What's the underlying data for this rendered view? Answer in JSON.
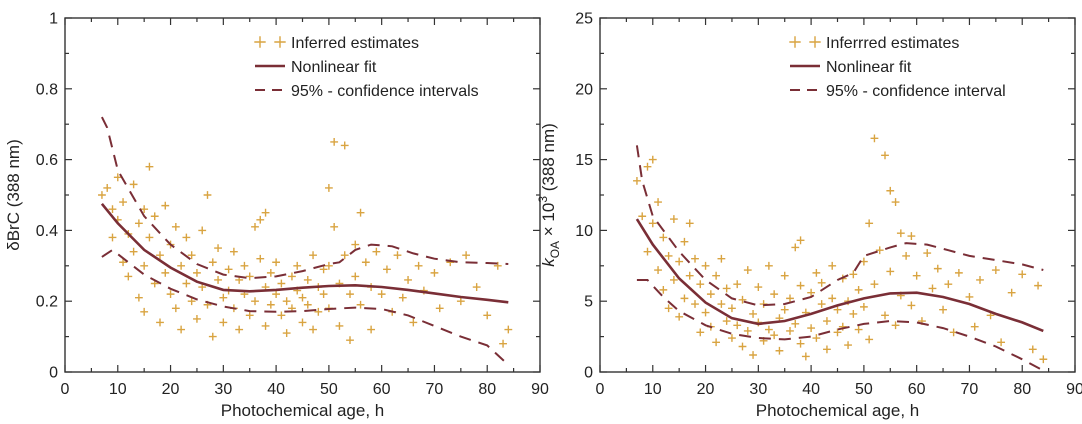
{
  "colors": {
    "points": "#d9a441",
    "fit": "#7a2e36",
    "ci": "#7a2e36",
    "axis": "#333333"
  },
  "chart_data": [
    {
      "type": "scatter",
      "title": "",
      "xlabel": "Photochemical age, h",
      "ylabel": "δBrC (388 nm)",
      "ylabel_parts": [],
      "xlim": [
        0,
        90
      ],
      "ylim": [
        0,
        1
      ],
      "xticks": [
        "0",
        "10",
        "20",
        "30",
        "40",
        "50",
        "60",
        "70",
        "80",
        "90"
      ],
      "yticks": [
        "0",
        "0.2",
        "0.4",
        "0.6",
        "0.8",
        "1"
      ],
      "grid": false,
      "legend_position": "top-right",
      "legend": {
        "points": "Inferred estimates",
        "fit": "Nonlinear fit",
        "ci": "95% - confidence intervals"
      },
      "fit_curve": [
        [
          7,
          0.475
        ],
        [
          10,
          0.42
        ],
        [
          15,
          0.345
        ],
        [
          20,
          0.295
        ],
        [
          25,
          0.255
        ],
        [
          30,
          0.232
        ],
        [
          35,
          0.228
        ],
        [
          40,
          0.232
        ],
        [
          45,
          0.238
        ],
        [
          50,
          0.243
        ],
        [
          55,
          0.245
        ],
        [
          60,
          0.24
        ],
        [
          65,
          0.232
        ],
        [
          70,
          0.222
        ],
        [
          75,
          0.212
        ],
        [
          80,
          0.204
        ],
        [
          84,
          0.197
        ]
      ],
      "ci_upper": [
        [
          7,
          0.72
        ],
        [
          8,
          0.69
        ],
        [
          10,
          0.57
        ],
        [
          15,
          0.44
        ],
        [
          20,
          0.36
        ],
        [
          25,
          0.305
        ],
        [
          30,
          0.275
        ],
        [
          35,
          0.265
        ],
        [
          40,
          0.27
        ],
        [
          45,
          0.285
        ],
        [
          50,
          0.305
        ],
        [
          52,
          0.31
        ],
        [
          55,
          0.345
        ],
        [
          58,
          0.36
        ],
        [
          62,
          0.355
        ],
        [
          66,
          0.335
        ],
        [
          70,
          0.32
        ],
        [
          75,
          0.31
        ],
        [
          80,
          0.308
        ],
        [
          84,
          0.305
        ]
      ],
      "ci_lower": [
        [
          7,
          0.325
        ],
        [
          9,
          0.345
        ],
        [
          12,
          0.31
        ],
        [
          15,
          0.275
        ],
        [
          20,
          0.235
        ],
        [
          25,
          0.205
        ],
        [
          30,
          0.185
        ],
        [
          35,
          0.172
        ],
        [
          40,
          0.17
        ],
        [
          45,
          0.172
        ],
        [
          50,
          0.178
        ],
        [
          55,
          0.182
        ],
        [
          60,
          0.178
        ],
        [
          65,
          0.16
        ],
        [
          70,
          0.13
        ],
        [
          75,
          0.1
        ],
        [
          80,
          0.075
        ],
        [
          84,
          0.02
        ]
      ],
      "points": [
        [
          7,
          0.5
        ],
        [
          8,
          0.52
        ],
        [
          9,
          0.46
        ],
        [
          9,
          0.38
        ],
        [
          10,
          0.55
        ],
        [
          10,
          0.43
        ],
        [
          11,
          0.31
        ],
        [
          11,
          0.48
        ],
        [
          12,
          0.39
        ],
        [
          12,
          0.27
        ],
        [
          13,
          0.53
        ],
        [
          13,
          0.34
        ],
        [
          14,
          0.42
        ],
        [
          14,
          0.21
        ],
        [
          15,
          0.46
        ],
        [
          15,
          0.3
        ],
        [
          15,
          0.17
        ],
        [
          16,
          0.58
        ],
        [
          16,
          0.38
        ],
        [
          17,
          0.25
        ],
        [
          17,
          0.44
        ],
        [
          18,
          0.33
        ],
        [
          18,
          0.14
        ],
        [
          19,
          0.47
        ],
        [
          19,
          0.28
        ],
        [
          20,
          0.36
        ],
        [
          20,
          0.22
        ],
        [
          21,
          0.41
        ],
        [
          21,
          0.18
        ],
        [
          22,
          0.3
        ],
        [
          22,
          0.12
        ],
        [
          23,
          0.38
        ],
        [
          23,
          0.25
        ],
        [
          24,
          0.2
        ],
        [
          24,
          0.33
        ],
        [
          25,
          0.28
        ],
        [
          25,
          0.15
        ],
        [
          26,
          0.24
        ],
        [
          26,
          0.4
        ],
        [
          27,
          0.5
        ],
        [
          27,
          0.19
        ],
        [
          28,
          0.31
        ],
        [
          28,
          0.1
        ],
        [
          29,
          0.26
        ],
        [
          29,
          0.35
        ],
        [
          30,
          0.21
        ],
        [
          30,
          0.14
        ],
        [
          31,
          0.29
        ],
        [
          31,
          0.23
        ],
        [
          32,
          0.18
        ],
        [
          32,
          0.34
        ],
        [
          33,
          0.26
        ],
        [
          33,
          0.12
        ],
        [
          34,
          0.3
        ],
        [
          34,
          0.22
        ],
        [
          35,
          0.16
        ],
        [
          35,
          0.27
        ],
        [
          36,
          0.2
        ],
        [
          36,
          0.41
        ],
        [
          37,
          0.43
        ],
        [
          37,
          0.32
        ],
        [
          38,
          0.45
        ],
        [
          38,
          0.24
        ],
        [
          38,
          0.13
        ],
        [
          39,
          0.19
        ],
        [
          39,
          0.28
        ],
        [
          40,
          0.22
        ],
        [
          40,
          0.31
        ],
        [
          41,
          0.16
        ],
        [
          41,
          0.25
        ],
        [
          42,
          0.2
        ],
        [
          42,
          0.11
        ],
        [
          43,
          0.27
        ],
        [
          43,
          0.18
        ],
        [
          44,
          0.23
        ],
        [
          44,
          0.3
        ],
        [
          45,
          0.14
        ],
        [
          45,
          0.21
        ],
        [
          46,
          0.26
        ],
        [
          46,
          0.19
        ],
        [
          47,
          0.33
        ],
        [
          47,
          0.12
        ],
        [
          48,
          0.24
        ],
        [
          48,
          0.17
        ],
        [
          49,
          0.29
        ],
        [
          49,
          0.22
        ],
        [
          50,
          0.52
        ],
        [
          50,
          0.3
        ],
        [
          50,
          0.18
        ],
        [
          51,
          0.65
        ],
        [
          51,
          0.41
        ],
        [
          52,
          0.25
        ],
        [
          52,
          0.13
        ],
        [
          53,
          0.64
        ],
        [
          53,
          0.33
        ],
        [
          54,
          0.22
        ],
        [
          54,
          0.09
        ],
        [
          55,
          0.27
        ],
        [
          55,
          0.36
        ],
        [
          56,
          0.19
        ],
        [
          56,
          0.45
        ],
        [
          57,
          0.31
        ],
        [
          58,
          0.24
        ],
        [
          58,
          0.12
        ],
        [
          59,
          0.34
        ],
        [
          60,
          0.22
        ],
        [
          61,
          0.29
        ],
        [
          62,
          0.17
        ],
        [
          63,
          0.33
        ],
        [
          64,
          0.21
        ],
        [
          65,
          0.26
        ],
        [
          66,
          0.14
        ],
        [
          67,
          0.3
        ],
        [
          68,
          0.23
        ],
        [
          70,
          0.28
        ],
        [
          71,
          0.18
        ],
        [
          73,
          0.31
        ],
        [
          75,
          0.2
        ],
        [
          76,
          0.33
        ],
        [
          78,
          0.24
        ],
        [
          80,
          0.16
        ],
        [
          82,
          0.3
        ],
        [
          83,
          0.08
        ],
        [
          84,
          0.12
        ]
      ]
    },
    {
      "type": "scatter",
      "title": "",
      "xlabel": "Photochemical age, h",
      "ylabel": "",
      "ylabel_parts": [
        "k",
        "OA",
        " × 10",
        "3",
        " (388 nm)"
      ],
      "xlim": [
        0,
        90
      ],
      "ylim": [
        0,
        25
      ],
      "xticks": [
        "0",
        "10",
        "20",
        "30",
        "40",
        "50",
        "60",
        "70",
        "80",
        "90"
      ],
      "yticks": [
        "0",
        "5",
        "10",
        "15",
        "20",
        "25"
      ],
      "grid": false,
      "legend_position": "top-right",
      "legend": {
        "points": "Inferrred estimates",
        "fit": "Nonlinear fit",
        "ci": "95% - confidence interval"
      },
      "fit_curve": [
        [
          7,
          10.8
        ],
        [
          10,
          9.0
        ],
        [
          15,
          6.6
        ],
        [
          20,
          4.9
        ],
        [
          25,
          3.8
        ],
        [
          30,
          3.4
        ],
        [
          35,
          3.6
        ],
        [
          40,
          4.1
        ],
        [
          45,
          4.7
        ],
        [
          50,
          5.2
        ],
        [
          55,
          5.55
        ],
        [
          60,
          5.6
        ],
        [
          65,
          5.3
        ],
        [
          70,
          4.8
        ],
        [
          75,
          4.1
        ],
        [
          80,
          3.5
        ],
        [
          84,
          2.9
        ]
      ],
      "ci_upper": [
        [
          7,
          16.0
        ],
        [
          8,
          13.5
        ],
        [
          10,
          11.0
        ],
        [
          15,
          8.5
        ],
        [
          20,
          6.5
        ],
        [
          25,
          5.2
        ],
        [
          30,
          4.7
        ],
        [
          35,
          4.8
        ],
        [
          40,
          5.3
        ],
        [
          45,
          6.5
        ],
        [
          48,
          7.0
        ],
        [
          50,
          8.2
        ],
        [
          55,
          8.8
        ],
        [
          58,
          9.1
        ],
        [
          62,
          9.0
        ],
        [
          66,
          8.6
        ],
        [
          70,
          8.2
        ],
        [
          75,
          7.9
        ],
        [
          80,
          7.6
        ],
        [
          84,
          7.2
        ]
      ],
      "ci_lower": [
        [
          7,
          6.5
        ],
        [
          9,
          6.5
        ],
        [
          12,
          5.3
        ],
        [
          15,
          4.3
        ],
        [
          20,
          3.3
        ],
        [
          25,
          2.7
        ],
        [
          30,
          2.4
        ],
        [
          35,
          2.3
        ],
        [
          40,
          2.5
        ],
        [
          45,
          3.0
        ],
        [
          50,
          3.4
        ],
        [
          55,
          3.6
        ],
        [
          60,
          3.5
        ],
        [
          65,
          3.1
        ],
        [
          70,
          2.5
        ],
        [
          75,
          1.8
        ],
        [
          80,
          0.9
        ],
        [
          84,
          0.1
        ]
      ],
      "points": [
        [
          7,
          13.5
        ],
        [
          8,
          11.0
        ],
        [
          9,
          14.5
        ],
        [
          9,
          8.5
        ],
        [
          10,
          15.0
        ],
        [
          10,
          10.5
        ],
        [
          11,
          7.2
        ],
        [
          11,
          12.0
        ],
        [
          12,
          9.5
        ],
        [
          12,
          5.8
        ],
        [
          13,
          8.2
        ],
        [
          13,
          4.5
        ],
        [
          14,
          10.8
        ],
        [
          14,
          6.5
        ],
        [
          15,
          7.8
        ],
        [
          15,
          3.9
        ],
        [
          16,
          9.2
        ],
        [
          16,
          5.2
        ],
        [
          17,
          6.8
        ],
        [
          17,
          10.5
        ],
        [
          18,
          4.8
        ],
        [
          18,
          8.0
        ],
        [
          19,
          6.2
        ],
        [
          19,
          2.8
        ],
        [
          20,
          7.5
        ],
        [
          20,
          4.2
        ],
        [
          21,
          5.5
        ],
        [
          21,
          3.2
        ],
        [
          22,
          6.8
        ],
        [
          22,
          2.1
        ],
        [
          23,
          4.8
        ],
        [
          23,
          8.0
        ],
        [
          24,
          3.6
        ],
        [
          24,
          5.9
        ],
        [
          25,
          4.5
        ],
        [
          25,
          2.4
        ],
        [
          26,
          6.2
        ],
        [
          26,
          3.3
        ],
        [
          27,
          1.8
        ],
        [
          27,
          5.1
        ],
        [
          28,
          7.2
        ],
        [
          28,
          2.9
        ],
        [
          29,
          4.1
        ],
        [
          29,
          1.2
        ],
        [
          30,
          3.5
        ],
        [
          30,
          6.0
        ],
        [
          31,
          2.2
        ],
        [
          31,
          4.8
        ],
        [
          32,
          3.0
        ],
        [
          32,
          7.5
        ],
        [
          33,
          2.6
        ],
        [
          33,
          5.5
        ],
        [
          34,
          3.8
        ],
        [
          34,
          1.5
        ],
        [
          35,
          4.4
        ],
        [
          35,
          6.8
        ],
        [
          36,
          2.9
        ],
        [
          36,
          5.2
        ],
        [
          37,
          8.8
        ],
        [
          37,
          3.4
        ],
        [
          38,
          9.3
        ],
        [
          38,
          2.0
        ],
        [
          38,
          6.1
        ],
        [
          39,
          4.2
        ],
        [
          39,
          1.1
        ],
        [
          40,
          5.6
        ],
        [
          40,
          3.1
        ],
        [
          41,
          7.0
        ],
        [
          41,
          2.4
        ],
        [
          42,
          4.8
        ],
        [
          42,
          6.3
        ],
        [
          43,
          3.6
        ],
        [
          43,
          1.6
        ],
        [
          44,
          5.2
        ],
        [
          44,
          7.5
        ],
        [
          45,
          2.8
        ],
        [
          45,
          4.4
        ],
        [
          46,
          6.6
        ],
        [
          46,
          3.2
        ],
        [
          47,
          5.0
        ],
        [
          47,
          1.9
        ],
        [
          48,
          6.9
        ],
        [
          48,
          4.1
        ],
        [
          49,
          3.0
        ],
        [
          49,
          5.8
        ],
        [
          50,
          7.8
        ],
        [
          50,
          4.6
        ],
        [
          51,
          10.5
        ],
        [
          51,
          2.3
        ],
        [
          52,
          16.5
        ],
        [
          52,
          6.2
        ],
        [
          53,
          8.6
        ],
        [
          54,
          15.3
        ],
        [
          54,
          4.0
        ],
        [
          55,
          12.8
        ],
        [
          55,
          7.1
        ],
        [
          56,
          12.0
        ],
        [
          56,
          3.3
        ],
        [
          57,
          9.8
        ],
        [
          57,
          5.4
        ],
        [
          58,
          8.2
        ],
        [
          59,
          4.7
        ],
        [
          59,
          9.6
        ],
        [
          60,
          6.8
        ],
        [
          61,
          3.6
        ],
        [
          62,
          8.4
        ],
        [
          63,
          5.9
        ],
        [
          64,
          7.3
        ],
        [
          65,
          4.4
        ],
        [
          66,
          6.2
        ],
        [
          67,
          2.8
        ],
        [
          68,
          7.0
        ],
        [
          70,
          5.3
        ],
        [
          71,
          3.2
        ],
        [
          72,
          6.5
        ],
        [
          74,
          4.0
        ],
        [
          75,
          7.2
        ],
        [
          76,
          2.1
        ],
        [
          78,
          5.6
        ],
        [
          80,
          6.9
        ],
        [
          82,
          1.6
        ],
        [
          83,
          6.1
        ],
        [
          84,
          0.9
        ]
      ]
    }
  ]
}
